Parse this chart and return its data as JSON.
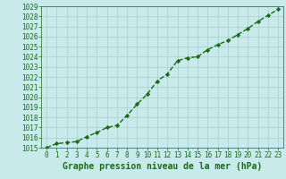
{
  "x": [
    0,
    1,
    2,
    3,
    4,
    5,
    6,
    7,
    8,
    9,
    10,
    11,
    12,
    13,
    14,
    15,
    16,
    17,
    18,
    19,
    20,
    21,
    22,
    23
  ],
  "y": [
    1015.0,
    1015.4,
    1015.5,
    1015.6,
    1016.1,
    1016.5,
    1017.0,
    1017.2,
    1018.2,
    1019.3,
    1020.3,
    1021.6,
    1022.3,
    1023.6,
    1023.9,
    1024.0,
    1024.7,
    1025.2,
    1025.6,
    1026.2,
    1026.8,
    1027.5,
    1028.1,
    1028.7
  ],
  "ylim": [
    1015,
    1029
  ],
  "yticks": [
    1015,
    1016,
    1017,
    1018,
    1019,
    1020,
    1021,
    1022,
    1023,
    1024,
    1025,
    1026,
    1027,
    1028,
    1029
  ],
  "xticks": [
    0,
    1,
    2,
    3,
    4,
    5,
    6,
    7,
    8,
    9,
    10,
    11,
    12,
    13,
    14,
    15,
    16,
    17,
    18,
    19,
    20,
    21,
    22,
    23
  ],
  "line_color": "#1a6b1a",
  "marker": "D",
  "marker_size": 2.2,
  "bg_color": "#c8eaea",
  "grid_color": "#a8cece",
  "xlabel": "Graphe pression niveau de la mer (hPa)",
  "xlabel_color": "#1a6b1a",
  "tick_color": "#1a6b1a",
  "tick_fontsize": 5.5,
  "xlabel_fontsize": 7.0,
  "linewidth": 1.0,
  "xlim_left": -0.5,
  "xlim_right": 23.5
}
